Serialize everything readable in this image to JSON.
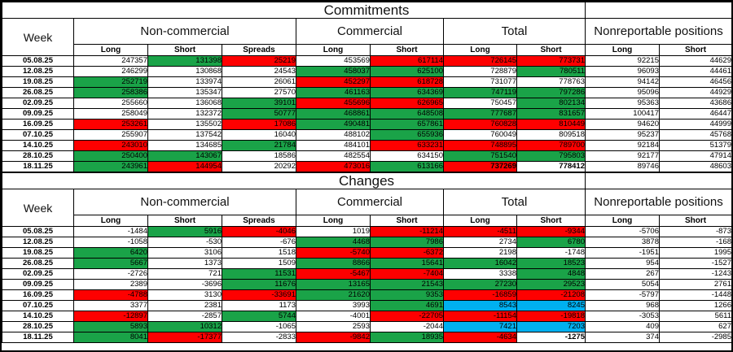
{
  "colors": {
    "positive_fill": "#1aa348",
    "negative_fill": "#fe0000",
    "highlight_fill": "#00b0f0",
    "grid": "#000000",
    "text": "#000000"
  },
  "header": {
    "week_label": "Week",
    "groups": [
      {
        "label": "Non-commercial",
        "cols": [
          "Long",
          "Short",
          "Spreads"
        ]
      },
      {
        "label": "Commercial",
        "cols": [
          "Long",
          "Short"
        ]
      },
      {
        "label": "Total",
        "cols": [
          "Long",
          "Short"
        ]
      },
      {
        "label": "Nonreportable positions",
        "cols": [
          "Long",
          "Short"
        ]
      }
    ]
  },
  "tables": [
    {
      "title": "Commitments",
      "rows": [
        {
          "week": "05.08.25",
          "cells": [
            [
              "247357",
              "w"
            ],
            [
              "131398",
              "g"
            ],
            [
              "25219",
              "r"
            ],
            [
              "453569",
              "w"
            ],
            [
              "617114",
              "r"
            ],
            [
              "726145",
              "r"
            ],
            [
              "773731",
              "r"
            ],
            [
              "92215",
              "w"
            ],
            [
              "44629",
              "w"
            ]
          ]
        },
        {
          "week": "12.08.25",
          "cells": [
            [
              "246299",
              "w"
            ],
            [
              "130868",
              "w"
            ],
            [
              "24543",
              "w"
            ],
            [
              "458037",
              "g"
            ],
            [
              "625100",
              "g"
            ],
            [
              "728879",
              "w"
            ],
            [
              "780511",
              "g"
            ],
            [
              "96093",
              "w"
            ],
            [
              "44461",
              "w"
            ]
          ]
        },
        {
          "week": "19.08.25",
          "cells": [
            [
              "252719",
              "g"
            ],
            [
              "133974",
              "w"
            ],
            [
              "26061",
              "w"
            ],
            [
              "452297",
              "r"
            ],
            [
              "618728",
              "r"
            ],
            [
              "731077",
              "w"
            ],
            [
              "778763",
              "w"
            ],
            [
              "94142",
              "w"
            ],
            [
              "46456",
              "w"
            ]
          ]
        },
        {
          "week": "26.08.25",
          "cells": [
            [
              "258386",
              "g"
            ],
            [
              "135347",
              "w"
            ],
            [
              "27570",
              "w"
            ],
            [
              "461163",
              "g"
            ],
            [
              "634369",
              "g"
            ],
            [
              "747119",
              "g"
            ],
            [
              "797286",
              "g"
            ],
            [
              "95096",
              "w"
            ],
            [
              "44929",
              "w"
            ]
          ]
        },
        {
          "week": "02.09.25",
          "cells": [
            [
              "255660",
              "w"
            ],
            [
              "136068",
              "w"
            ],
            [
              "39101",
              "g"
            ],
            [
              "455696",
              "r"
            ],
            [
              "626965",
              "r"
            ],
            [
              "750457",
              "w"
            ],
            [
              "802134",
              "g"
            ],
            [
              "95363",
              "w"
            ],
            [
              "43686",
              "w"
            ]
          ]
        },
        {
          "week": "09.09.25",
          "cells": [
            [
              "258049",
              "w"
            ],
            [
              "132372",
              "w"
            ],
            [
              "50777",
              "g"
            ],
            [
              "468861",
              "g"
            ],
            [
              "648508",
              "g"
            ],
            [
              "777687",
              "g"
            ],
            [
              "831657",
              "g"
            ],
            [
              "100417",
              "w"
            ],
            [
              "46447",
              "w"
            ]
          ]
        },
        {
          "week": "16.09.25",
          "cells": [
            [
              "253261",
              "r"
            ],
            [
              "135502",
              "w"
            ],
            [
              "17086",
              "r"
            ],
            [
              "490481",
              "g"
            ],
            [
              "657861",
              "g"
            ],
            [
              "760828",
              "r"
            ],
            [
              "810449",
              "r"
            ],
            [
              "94620",
              "w"
            ],
            [
              "44999",
              "w"
            ]
          ]
        },
        {
          "week": "07.10.25",
          "cells": [
            [
              "255907",
              "w"
            ],
            [
              "137542",
              "w"
            ],
            [
              "16040",
              "w"
            ],
            [
              "488102",
              "w"
            ],
            [
              "655936",
              "g"
            ],
            [
              "760049",
              "w"
            ],
            [
              "809518",
              "w"
            ],
            [
              "95237",
              "w"
            ],
            [
              "45768",
              "w"
            ]
          ]
        },
        {
          "week": "14.10.25",
          "cells": [
            [
              "243010",
              "r"
            ],
            [
              "134685",
              "w"
            ],
            [
              "21784",
              "g"
            ],
            [
              "484101",
              "w"
            ],
            [
              "633231",
              "r"
            ],
            [
              "748895",
              "r"
            ],
            [
              "789700",
              "r"
            ],
            [
              "92184",
              "w"
            ],
            [
              "51379",
              "w"
            ]
          ]
        },
        {
          "week": "28.10.25",
          "cells": [
            [
              "250400",
              "g"
            ],
            [
              "143067",
              "g"
            ],
            [
              "18586",
              "w"
            ],
            [
              "482554",
              "w"
            ],
            [
              "634150",
              "w"
            ],
            [
              "751540",
              "g"
            ],
            [
              "795803",
              "g"
            ],
            [
              "92177",
              "w"
            ],
            [
              "47914",
              "w"
            ]
          ]
        },
        {
          "week": "18.11.25",
          "cells": [
            [
              "243961",
              "g"
            ],
            [
              "144954",
              "r"
            ],
            [
              "20292",
              "w"
            ],
            [
              "473016",
              "r"
            ],
            [
              "613166",
              "g"
            ],
            [
              "737269",
              "r",
              "b"
            ],
            [
              "778412",
              "w",
              "b"
            ],
            [
              "89746",
              "w"
            ],
            [
              "48603",
              "w"
            ]
          ]
        }
      ]
    },
    {
      "title": "Changes",
      "rows": [
        {
          "week": "05.08.25",
          "cells": [
            [
              "-1484",
              "w"
            ],
            [
              "5916",
              "g"
            ],
            [
              "-4046",
              "r"
            ],
            [
              "1019",
              "w"
            ],
            [
              "-11214",
              "r"
            ],
            [
              "-4511",
              "r"
            ],
            [
              "-9344",
              "r"
            ],
            [
              "-5706",
              "w"
            ],
            [
              "-873",
              "w"
            ]
          ]
        },
        {
          "week": "12.08.25",
          "cells": [
            [
              "-1058",
              "w"
            ],
            [
              "-530",
              "w"
            ],
            [
              "-676",
              "w"
            ],
            [
              "4468",
              "g"
            ],
            [
              "7986",
              "g"
            ],
            [
              "2734",
              "w"
            ],
            [
              "6780",
              "g"
            ],
            [
              "3878",
              "w"
            ],
            [
              "-168",
              "w"
            ]
          ]
        },
        {
          "week": "19.08.25",
          "cells": [
            [
              "6420",
              "g"
            ],
            [
              "3106",
              "w"
            ],
            [
              "1518",
              "w"
            ],
            [
              "-5740",
              "r"
            ],
            [
              "-6372",
              "r"
            ],
            [
              "2198",
              "w"
            ],
            [
              "-1748",
              "w"
            ],
            [
              "-1951",
              "w"
            ],
            [
              "1995",
              "w"
            ]
          ]
        },
        {
          "week": "26.08.25",
          "cells": [
            [
              "5667",
              "g"
            ],
            [
              "1373",
              "w"
            ],
            [
              "1509",
              "w"
            ],
            [
              "8866",
              "g"
            ],
            [
              "15641",
              "g"
            ],
            [
              "16042",
              "g"
            ],
            [
              "18523",
              "g"
            ],
            [
              "954",
              "w"
            ],
            [
              "-1527",
              "w"
            ]
          ]
        },
        {
          "week": "02.09.25",
          "cells": [
            [
              "-2726",
              "w"
            ],
            [
              "721",
              "w"
            ],
            [
              "11531",
              "g"
            ],
            [
              "-5467",
              "r"
            ],
            [
              "-7404",
              "r"
            ],
            [
              "3338",
              "w"
            ],
            [
              "4848",
              "g"
            ],
            [
              "267",
              "w"
            ],
            [
              "-1243",
              "w"
            ]
          ]
        },
        {
          "week": "09.09.25",
          "cells": [
            [
              "2389",
              "w"
            ],
            [
              "-3696",
              "w"
            ],
            [
              "11676",
              "g"
            ],
            [
              "13165",
              "g"
            ],
            [
              "21543",
              "g"
            ],
            [
              "27230",
              "g"
            ],
            [
              "29523",
              "g"
            ],
            [
              "5054",
              "w"
            ],
            [
              "2761",
              "w"
            ]
          ]
        },
        {
          "week": "16.09.25",
          "cells": [
            [
              "-4788",
              "r"
            ],
            [
              "3130",
              "w"
            ],
            [
              "-33691",
              "r"
            ],
            [
              "21620",
              "g"
            ],
            [
              "9353",
              "g"
            ],
            [
              "-16859",
              "r"
            ],
            [
              "-21208",
              "r"
            ],
            [
              "-5797",
              "w"
            ],
            [
              "-1448",
              "w"
            ]
          ]
        },
        {
          "week": "07.10.25",
          "cells": [
            [
              "3377",
              "w"
            ],
            [
              "2381",
              "w"
            ],
            [
              "1173",
              "w"
            ],
            [
              "3993",
              "w"
            ],
            [
              "4691",
              "g"
            ],
            [
              "8543",
              "b"
            ],
            [
              "8245",
              "b"
            ],
            [
              "968",
              "w"
            ],
            [
              "1266",
              "w"
            ]
          ]
        },
        {
          "week": "14.10.25",
          "cells": [
            [
              "-12897",
              "r"
            ],
            [
              "-2857",
              "w"
            ],
            [
              "5744",
              "g"
            ],
            [
              "-4001",
              "w"
            ],
            [
              "-22705",
              "r"
            ],
            [
              "-11154",
              "r"
            ],
            [
              "-19818",
              "r"
            ],
            [
              "-3053",
              "w"
            ],
            [
              "5611",
              "w"
            ]
          ]
        },
        {
          "week": "28.10.25",
          "cells": [
            [
              "5893",
              "g"
            ],
            [
              "10312",
              "g"
            ],
            [
              "-1065",
              "w"
            ],
            [
              "2593",
              "w"
            ],
            [
              "-2044",
              "w"
            ],
            [
              "7421",
              "b"
            ],
            [
              "7203",
              "b"
            ],
            [
              "409",
              "w"
            ],
            [
              "627",
              "w"
            ]
          ]
        },
        {
          "week": "18.11.25",
          "cells": [
            [
              "8041",
              "g"
            ],
            [
              "-17377",
              "r"
            ],
            [
              "-2833",
              "w"
            ],
            [
              "-9842",
              "r"
            ],
            [
              "18935",
              "g"
            ],
            [
              "-4634",
              "r"
            ],
            [
              "-1275",
              "w",
              "b"
            ],
            [
              "374",
              "w"
            ],
            [
              "-2985",
              "w"
            ]
          ]
        }
      ]
    }
  ]
}
